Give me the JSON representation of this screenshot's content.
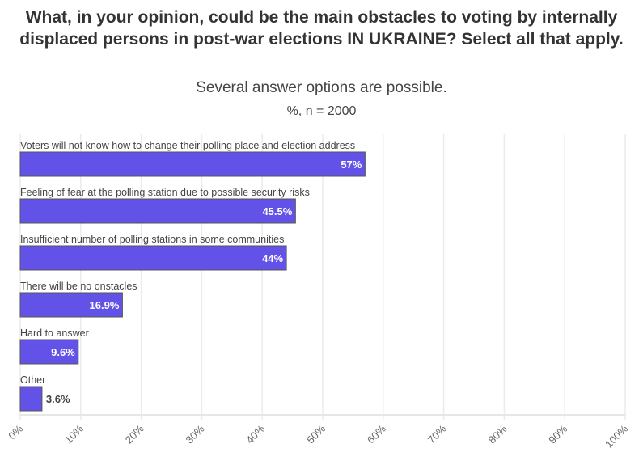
{
  "header": {
    "title": "What, in your opinion, could be the main obstacles to voting by internally displaced persons in post-war elections IN UKRAINE? Select all that apply.",
    "subtitle": "Several answer options are possible.",
    "note": "%, n = 2000"
  },
  "colors": {
    "bar": "#6352E8",
    "bar_stroke": "#555555",
    "grid": "#EBEBEB",
    "axis": "#E6E6E6"
  },
  "chart_data": {
    "type": "bar",
    "orientation": "horizontal",
    "title": "What, in your opinion, could be the main obstacles to voting by internally displaced persons in post-war elections IN UKRAINE? Select all that apply.",
    "subtitle": "Several answer options are possible.",
    "xlabel": "",
    "ylabel": "",
    "xlim": [
      0,
      100
    ],
    "grid": true,
    "legend": "none",
    "categories": [
      "Voters will not know how to change their polling place and election address",
      "Feeling of fear at the polling station due to possible security risks",
      "Insufficient number of polling stations in some communities",
      "There will be no onstacles",
      "Hard to answer",
      "Other"
    ],
    "values": [
      57,
      45.5,
      44,
      16.9,
      9.6,
      3.6
    ],
    "value_labels": [
      "57%",
      "45.5%",
      "44%",
      "16.9%",
      "9.6%",
      "3.6%"
    ],
    "ticks": [
      0,
      10,
      20,
      30,
      40,
      50,
      60,
      70,
      80,
      90,
      100
    ],
    "tick_labels": [
      "0%",
      "10%",
      "20%",
      "30%",
      "40%",
      "50%",
      "60%",
      "70%",
      "80%",
      "90%",
      "100%"
    ]
  }
}
